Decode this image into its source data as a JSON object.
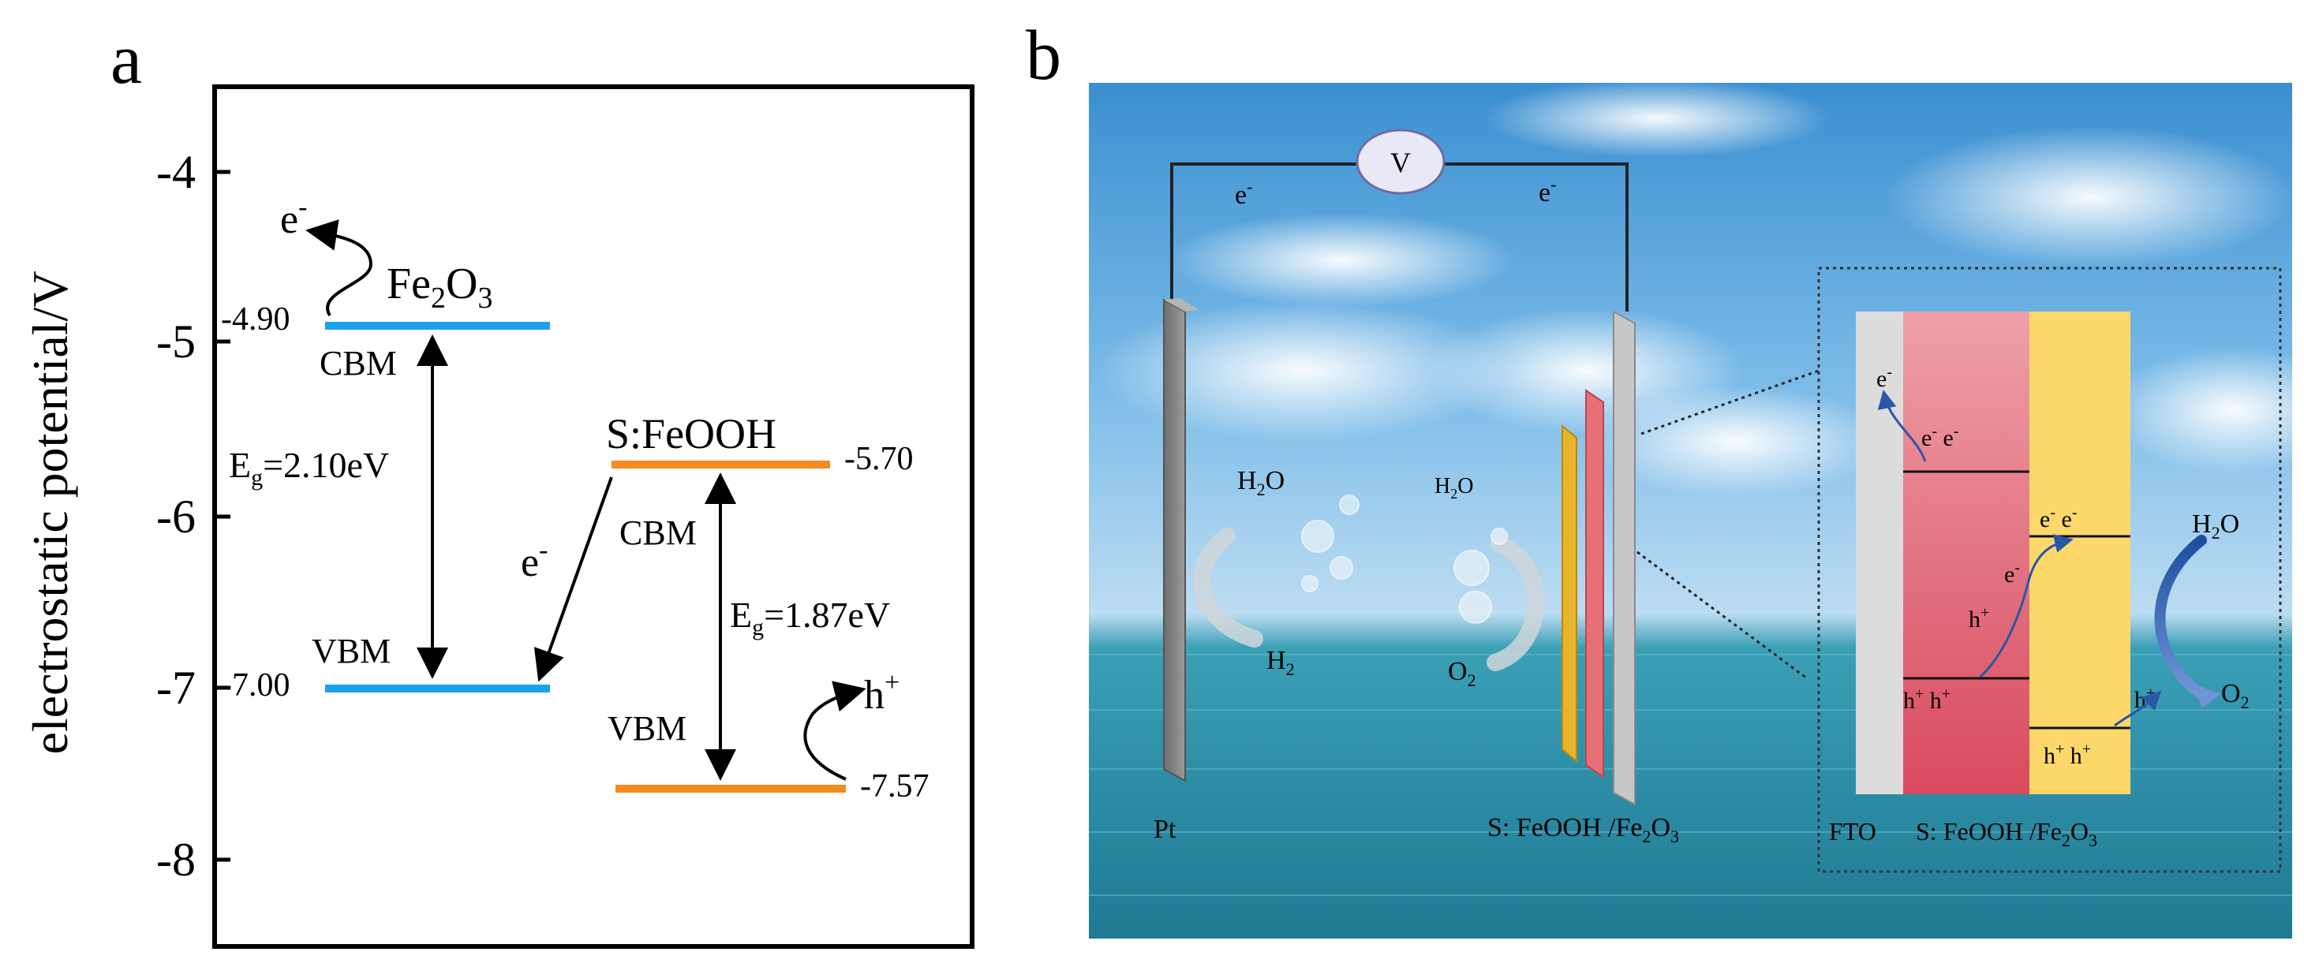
{
  "panel_a": {
    "label": "a",
    "y_axis": {
      "label": "electrostatic potential/V",
      "ticks": [
        "-4",
        "-5",
        "-6",
        "-7",
        "-8"
      ]
    },
    "fe2o3": {
      "name": "Fe2O3",
      "cbm_value": "-4.90",
      "vbm_value": "-7.00",
      "cbm_label": "CBM",
      "vbm_label": "VBM",
      "gap_label": "Eg=2.10eV",
      "electron_label": "e-",
      "color": "#1aa3e8"
    },
    "sfeooh": {
      "name": "S:FeOOH",
      "cbm_value": "-5.70",
      "vbm_value": "-7.57",
      "cbm_label": "CBM",
      "vbm_label": "VBM",
      "gap_label": "Eg=1.87eV",
      "hole_label": "h+",
      "color": "#f28c1e"
    },
    "transfer_electron_label": "e-"
  },
  "panel_b": {
    "label": "b",
    "voltmeter": "V",
    "wire_left_electron": "e-",
    "wire_right_electron": "e-",
    "left_electrode": "Pt",
    "right_electrode": "S: FeOOH /Fe2O3",
    "left_reactant": "H2O",
    "left_product": "H2",
    "right_reactant": "H2O",
    "right_product": "O2",
    "inset": {
      "fto_label": "FTO",
      "layers_label": "S: FeOOH /Fe2O3",
      "electron_escape": "e-",
      "electrons_fe2o3_cb": "e- e-",
      "electrons_sfeooh_cb": "e- e-",
      "electron_transfer": "e-",
      "hole_transfer": "h+",
      "holes_fe2o3_vb": "h+ h+",
      "holes_sfeooh_vb": "h+ h+",
      "hole_to_water": "h+",
      "reactant": "H2O",
      "product": "O2"
    }
  }
}
